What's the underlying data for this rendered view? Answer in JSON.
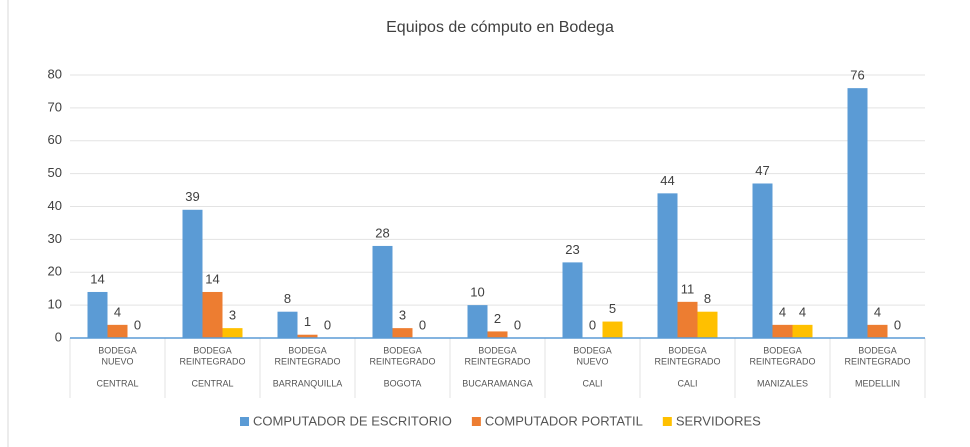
{
  "chart_data": {
    "type": "bar",
    "title": "Equipos de cómputo en Bodega",
    "categories": [
      [
        "BODEGA",
        "NUEVO"
      ],
      [
        "BODEGA",
        "REINTEGRADO"
      ],
      [
        "BODEGA",
        "REINTEGRADO"
      ],
      [
        "BODEGA",
        "REINTEGRADO"
      ],
      [
        "BODEGA",
        "REINTEGRADO"
      ],
      [
        "BODEGA",
        "NUEVO"
      ],
      [
        "BODEGA",
        "REINTEGRADO"
      ],
      [
        "BODEGA",
        "REINTEGRADO"
      ],
      [
        "BODEGA",
        "REINTEGRADO"
      ]
    ],
    "groups": [
      "CENTRAL",
      "CENTRAL",
      "BARRANQUILLA",
      "BOGOTA",
      "BUCARAMANGA",
      "CALI",
      "CALI",
      "MANIZALES",
      "MEDELLIN"
    ],
    "series": [
      {
        "name": "COMPUTADOR DE ESCRITORIO",
        "color": "#5b9bd5",
        "values": [
          14,
          39,
          8,
          28,
          10,
          23,
          44,
          47,
          76
        ]
      },
      {
        "name": "COMPUTADOR PORTATIL",
        "color": "#ed7d31",
        "values": [
          4,
          14,
          1,
          3,
          2,
          0,
          11,
          4,
          4
        ]
      },
      {
        "name": "SERVIDORES",
        "color": "#ffc000",
        "values": [
          0,
          3,
          0,
          0,
          0,
          5,
          8,
          4,
          0
        ]
      }
    ],
    "ylim": [
      0,
      80
    ],
    "yticks": [
      0,
      10,
      20,
      30,
      40,
      50,
      60,
      70,
      80
    ],
    "grid": true,
    "legend": "bottom"
  }
}
